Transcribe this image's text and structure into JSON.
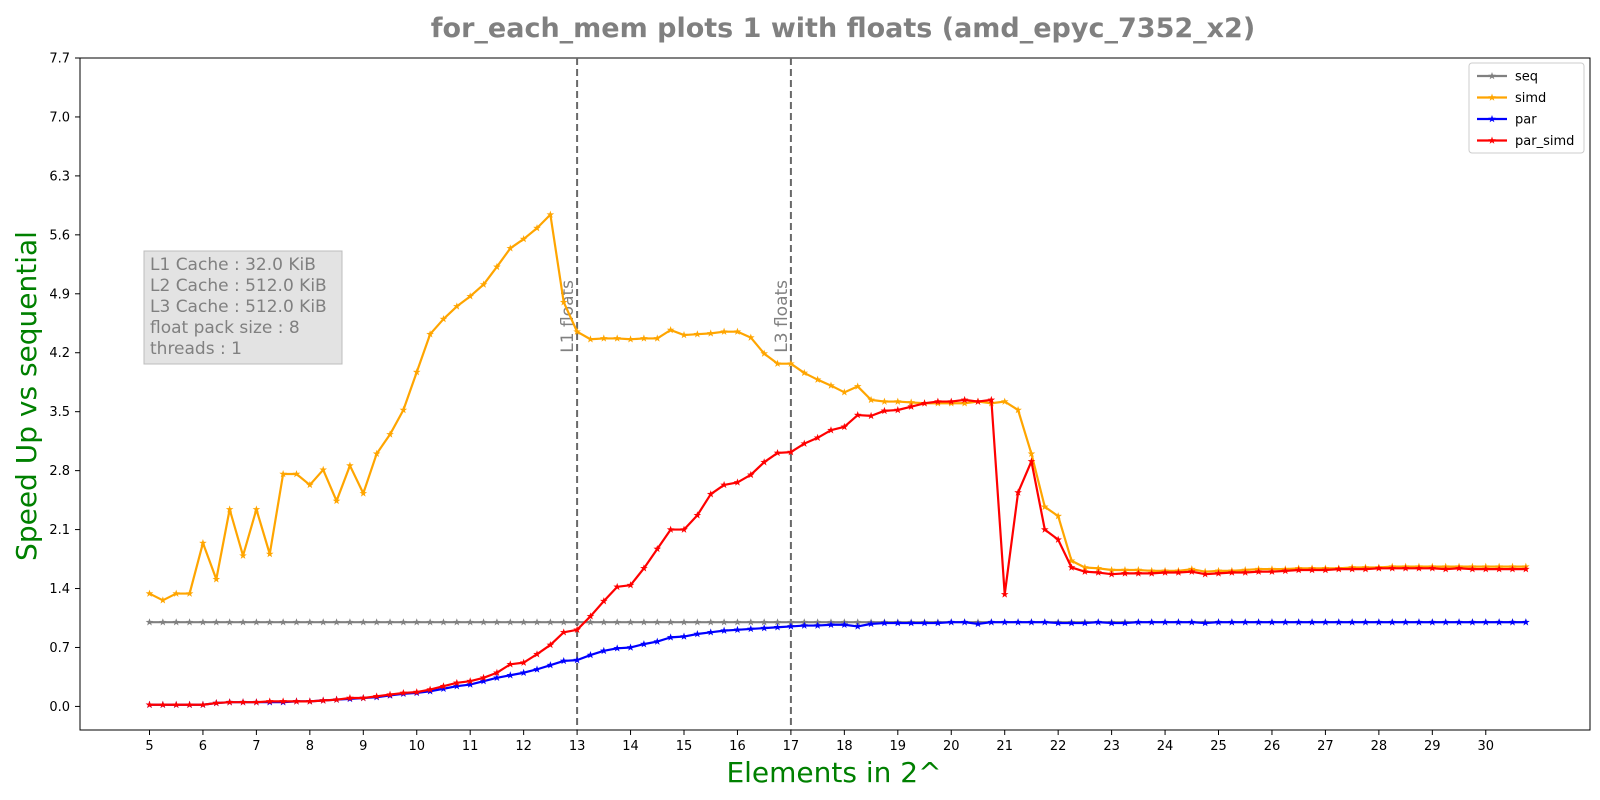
{
  "chart_data": {
    "type": "line",
    "title": "for_each_mem plots 1 with floats  (amd_epyc_7352_x2)",
    "xlabel": "Elements in 2^",
    "ylabel": "Speed Up vs sequential",
    "xlim": [
      3.7,
      31.95
    ],
    "ylim": [
      -0.28,
      7.7
    ],
    "x_ticks": [
      5,
      6,
      7,
      8,
      9,
      10,
      11,
      12,
      13,
      14,
      15,
      16,
      17,
      18,
      19,
      20,
      21,
      22,
      23,
      24,
      25,
      26,
      27,
      28,
      29,
      30
    ],
    "y_ticks": [
      0.0,
      0.7,
      1.4,
      2.1,
      2.8,
      3.5,
      4.2,
      4.9,
      5.6,
      6.3,
      7.0,
      7.7
    ],
    "y_tick_labels": [
      "0.0",
      "0.7",
      "1.4",
      "2.1",
      "2.8",
      "3.5",
      "4.2",
      "4.9",
      "5.6",
      "6.3",
      "7.0",
      "7.7"
    ],
    "legend_position": "top-right",
    "grid": false,
    "x": [
      5.0,
      5.25,
      5.5,
      5.75,
      6.0,
      6.25,
      6.5,
      6.75,
      7.0,
      7.25,
      7.5,
      7.75,
      8.0,
      8.25,
      8.5,
      8.75,
      9.0,
      9.25,
      9.5,
      9.75,
      10.0,
      10.25,
      10.5,
      10.75,
      11.0,
      11.25,
      11.5,
      11.75,
      12.0,
      12.25,
      12.5,
      12.75,
      13.0,
      13.25,
      13.5,
      13.75,
      14.0,
      14.25,
      14.5,
      14.75,
      15.0,
      15.25,
      15.5,
      15.75,
      16.0,
      16.25,
      16.5,
      16.75,
      17.0,
      17.25,
      17.5,
      17.75,
      18.0,
      18.25,
      18.5,
      18.75,
      19.0,
      19.25,
      19.5,
      19.75,
      20.0,
      20.25,
      20.5,
      20.75,
      21.0,
      21.25,
      21.5,
      21.75,
      22.0,
      22.25,
      22.5,
      22.75,
      23.0,
      23.25,
      23.5,
      23.75,
      24.0,
      24.25,
      24.5,
      24.75,
      25.0,
      25.25,
      25.5,
      25.75,
      26.0,
      26.25,
      26.5,
      26.75,
      27.0,
      27.25,
      27.5,
      27.75,
      28.0,
      28.25,
      28.5,
      28.75,
      29.0,
      29.25,
      29.5,
      29.75,
      30.0,
      30.25,
      30.5,
      30.75
    ],
    "series": [
      {
        "name": "seq",
        "color": "#808080",
        "values": [
          1.0,
          1.0,
          1.0,
          1.0,
          1.0,
          1.0,
          1.0,
          1.0,
          1.0,
          1.0,
          1.0,
          1.0,
          1.0,
          1.0,
          1.0,
          1.0,
          1.0,
          1.0,
          1.0,
          1.0,
          1.0,
          1.0,
          1.0,
          1.0,
          1.0,
          1.0,
          1.0,
          1.0,
          1.0,
          1.0,
          1.0,
          1.0,
          1.0,
          1.0,
          1.0,
          1.0,
          1.0,
          1.0,
          1.0,
          1.0,
          1.0,
          1.0,
          1.0,
          1.0,
          1.0,
          1.0,
          1.0,
          1.0,
          1.0,
          1.0,
          1.0,
          1.0,
          1.0,
          1.0,
          1.0,
          1.0,
          1.0,
          1.0,
          1.0,
          1.0,
          1.0,
          1.0,
          1.0,
          1.0,
          1.0,
          1.0,
          1.0,
          1.0,
          1.0,
          1.0,
          1.0,
          1.0,
          1.0,
          1.0,
          1.0,
          1.0,
          1.0,
          1.0,
          1.0,
          1.0,
          1.0,
          1.0,
          1.0,
          1.0,
          1.0,
          1.0,
          1.0,
          1.0,
          1.0,
          1.0,
          1.0,
          1.0,
          1.0,
          1.0,
          1.0,
          1.0,
          1.0,
          1.0,
          1.0,
          1.0,
          1.0,
          1.0,
          1.0,
          1.0
        ]
      },
      {
        "name": "simd",
        "color": "#ffa500",
        "values": [
          1.34,
          1.26,
          1.34,
          1.34,
          1.94,
          1.51,
          2.34,
          1.79,
          2.34,
          1.81,
          2.76,
          2.76,
          2.63,
          2.81,
          2.44,
          2.86,
          2.53,
          3.0,
          3.23,
          3.52,
          3.97,
          4.42,
          4.6,
          4.75,
          4.87,
          5.01,
          5.22,
          5.44,
          5.55,
          5.68,
          5.84,
          4.8,
          4.45,
          4.36,
          4.37,
          4.37,
          4.36,
          4.37,
          4.37,
          4.47,
          4.41,
          4.42,
          4.43,
          4.45,
          4.45,
          4.38,
          4.19,
          4.07,
          4.07,
          3.96,
          3.88,
          3.81,
          3.73,
          3.8,
          3.64,
          3.62,
          3.62,
          3.61,
          3.6,
          3.6,
          3.6,
          3.6,
          3.62,
          3.6,
          3.62,
          3.52,
          3.0,
          2.37,
          2.26,
          1.73,
          1.65,
          1.64,
          1.62,
          1.62,
          1.62,
          1.61,
          1.61,
          1.61,
          1.63,
          1.6,
          1.61,
          1.61,
          1.62,
          1.63,
          1.63,
          1.63,
          1.64,
          1.64,
          1.64,
          1.64,
          1.65,
          1.65,
          1.65,
          1.66,
          1.66,
          1.66,
          1.66,
          1.66,
          1.66,
          1.66,
          1.66,
          1.66,
          1.66,
          1.66
        ]
      },
      {
        "name": "par",
        "color": "#0000ff",
        "values": [
          0.02,
          0.02,
          0.02,
          0.02,
          0.02,
          0.04,
          0.05,
          0.05,
          0.05,
          0.05,
          0.05,
          0.06,
          0.06,
          0.07,
          0.08,
          0.09,
          0.1,
          0.11,
          0.13,
          0.15,
          0.16,
          0.18,
          0.21,
          0.24,
          0.26,
          0.3,
          0.34,
          0.37,
          0.4,
          0.44,
          0.49,
          0.54,
          0.55,
          0.61,
          0.66,
          0.69,
          0.7,
          0.74,
          0.77,
          0.82,
          0.83,
          0.86,
          0.88,
          0.9,
          0.91,
          0.92,
          0.93,
          0.94,
          0.95,
          0.96,
          0.96,
          0.97,
          0.97,
          0.95,
          0.98,
          0.99,
          0.99,
          0.99,
          0.99,
          0.99,
          1.0,
          1.0,
          0.98,
          1.0,
          1.0,
          1.0,
          1.0,
          1.0,
          0.99,
          0.99,
          0.99,
          1.0,
          0.99,
          0.99,
          1.0,
          1.0,
          1.0,
          1.0,
          1.0,
          0.99,
          1.0,
          1.0,
          1.0,
          1.0,
          1.0,
          1.0,
          1.0,
          1.0,
          1.0,
          1.0,
          1.0,
          1.0,
          1.0,
          1.0,
          1.0,
          1.0,
          1.0,
          1.0,
          1.0,
          1.0,
          1.0,
          1.0,
          1.0,
          1.0
        ]
      },
      {
        "name": "par_simd",
        "color": "#ff0000",
        "values": [
          0.02,
          0.02,
          0.02,
          0.02,
          0.02,
          0.04,
          0.05,
          0.05,
          0.05,
          0.06,
          0.06,
          0.06,
          0.06,
          0.07,
          0.08,
          0.1,
          0.1,
          0.12,
          0.14,
          0.16,
          0.17,
          0.2,
          0.24,
          0.28,
          0.3,
          0.34,
          0.4,
          0.5,
          0.52,
          0.62,
          0.73,
          0.88,
          0.91,
          1.07,
          1.25,
          1.42,
          1.44,
          1.64,
          1.87,
          2.1,
          2.1,
          2.27,
          2.52,
          2.63,
          2.66,
          2.75,
          2.9,
          3.01,
          3.02,
          3.12,
          3.19,
          3.28,
          3.32,
          3.46,
          3.45,
          3.51,
          3.52,
          3.56,
          3.6,
          3.62,
          3.62,
          3.64,
          3.62,
          3.64,
          1.33,
          2.54,
          2.91,
          2.1,
          1.98,
          1.65,
          1.6,
          1.59,
          1.57,
          1.58,
          1.58,
          1.58,
          1.59,
          1.59,
          1.6,
          1.57,
          1.58,
          1.59,
          1.59,
          1.6,
          1.6,
          1.61,
          1.62,
          1.62,
          1.62,
          1.63,
          1.63,
          1.63,
          1.64,
          1.64,
          1.64,
          1.64,
          1.64,
          1.63,
          1.64,
          1.63,
          1.63,
          1.63,
          1.63,
          1.63
        ]
      }
    ],
    "vlines": [
      {
        "x": 13,
        "label": "L1 floats",
        "color": "#696969"
      },
      {
        "x": 17,
        "label": "L3 floats",
        "color": "#696969"
      }
    ],
    "info_box": {
      "lines": [
        "L1 Cache : 32.0 KiB",
        "L2 Cache : 512.0 KiB",
        "L3 Cache : 512.0 KiB",
        "float pack size : 8",
        "threads : 1"
      ]
    }
  }
}
